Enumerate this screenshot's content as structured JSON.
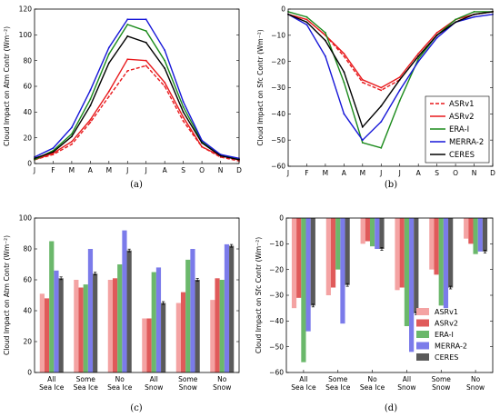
{
  "chart_data": [
    {
      "type": "line",
      "panel_label": "(a)",
      "ylabel": "Cloud Impact on Atm Contr (Wm⁻²)",
      "x": [
        "J",
        "F",
        "M",
        "A",
        "M",
        "J",
        "J",
        "A",
        "S",
        "O",
        "N",
        "D"
      ],
      "ylim": [
        0,
        120
      ],
      "yticks": [
        0,
        20,
        40,
        60,
        80,
        100,
        120
      ],
      "series": [
        {
          "name": "ASRv1",
          "color": "#e8191c",
          "dash": true,
          "values": [
            3,
            7,
            15,
            32,
            52,
            72,
            76,
            60,
            33,
            13,
            5,
            2
          ]
        },
        {
          "name": "ASRv2",
          "color": "#e8191c",
          "dash": false,
          "values": [
            3,
            8,
            17,
            34,
            56,
            81,
            80,
            63,
            36,
            13,
            6,
            3
          ]
        },
        {
          "name": "ERA-I",
          "color": "#1a8a1a",
          "dash": false,
          "values": [
            3,
            10,
            23,
            50,
            85,
            108,
            103,
            80,
            44,
            17,
            7,
            3
          ]
        },
        {
          "name": "MERRA-2",
          "color": "#1616d8",
          "dash": false,
          "values": [
            5,
            12,
            28,
            57,
            90,
            112,
            112,
            88,
            48,
            18,
            7,
            4
          ]
        },
        {
          "name": "CERES",
          "color": "#000000",
          "dash": false,
          "values": [
            4,
            9,
            21,
            45,
            78,
            99,
            94,
            74,
            40,
            16,
            6,
            3
          ]
        }
      ]
    },
    {
      "type": "line",
      "panel_label": "(b)",
      "ylabel": "Cloud Impact on Sfc Contr (Wm⁻²)",
      "x": [
        "J",
        "F",
        "M",
        "A",
        "M",
        "J",
        "J",
        "A",
        "S",
        "O",
        "N",
        "D"
      ],
      "ylim": [
        -60,
        0
      ],
      "yticks": [
        0,
        -10,
        -20,
        -30,
        -40,
        -50,
        -60
      ],
      "legend_position": "lower-right",
      "series": [
        {
          "name": "ASRv1",
          "color": "#e8191c",
          "dash": true,
          "values": [
            -2,
            -4,
            -10,
            -18,
            -28,
            -31,
            -27,
            -18,
            -10,
            -5,
            -2,
            -1
          ]
        },
        {
          "name": "ASRv2",
          "color": "#e8191c",
          "dash": false,
          "values": [
            -2,
            -4,
            -10,
            -17,
            -27,
            -30,
            -26,
            -17,
            -9,
            -4,
            -2,
            -1
          ]
        },
        {
          "name": "ERA-I",
          "color": "#1a8a1a",
          "dash": false,
          "values": [
            -1,
            -3,
            -9,
            -28,
            -51,
            -53,
            -35,
            -19,
            -10,
            -4,
            -1,
            -1
          ]
        },
        {
          "name": "MERRA-2",
          "color": "#1616d8",
          "dash": false,
          "values": [
            -2,
            -6,
            -18,
            -40,
            -50,
            -43,
            -31,
            -20,
            -11,
            -5,
            -3,
            -2
          ]
        },
        {
          "name": "CERES",
          "color": "#000000",
          "dash": false,
          "values": [
            -2,
            -5,
            -12,
            -24,
            -45,
            -37,
            -27,
            -18,
            -10,
            -5,
            -2,
            -1
          ]
        }
      ]
    },
    {
      "type": "bar",
      "panel_label": "(c)",
      "ylabel": "Cloud Impact on Atm Contr (Wm⁻²)",
      "categories": [
        [
          "All",
          "Sea Ice"
        ],
        [
          "Some",
          "Sea Ice"
        ],
        [
          "No",
          "Sea Ice"
        ],
        [
          "All",
          "Snow"
        ],
        [
          "Some",
          "Snow"
        ],
        [
          "No",
          "Snow"
        ]
      ],
      "ylim": [
        0,
        100
      ],
      "yticks": [
        0,
        20,
        40,
        60,
        80,
        100
      ],
      "series": [
        {
          "name": "ASRv1",
          "color": "#f4a3a3",
          "values": [
            51,
            60,
            60,
            35,
            45,
            47
          ]
        },
        {
          "name": "ASRv2",
          "color": "#e05a5a",
          "values": [
            48,
            55,
            61,
            35,
            52,
            61
          ]
        },
        {
          "name": "ERA-I",
          "color": "#6bb86b",
          "values": [
            85,
            57,
            70,
            65,
            73,
            60
          ]
        },
        {
          "name": "MERRA-2",
          "color": "#7b7bea",
          "values": [
            66,
            80,
            92,
            68,
            80,
            83
          ]
        },
        {
          "name": "CERES",
          "color": "#5a5a5a",
          "values": [
            61,
            64,
            79,
            45,
            60,
            82
          ]
        }
      ]
    },
    {
      "type": "bar",
      "panel_label": "(d)",
      "ylabel": "Cloud Impact on Sfc Contr (Wm⁻²)",
      "categories": [
        [
          "All",
          "Sea Ice"
        ],
        [
          "Some",
          "Sea Ice"
        ],
        [
          "No",
          "Sea Ice"
        ],
        [
          "All",
          "Snow"
        ],
        [
          "Some",
          "Snow"
        ],
        [
          "No",
          "Snow"
        ]
      ],
      "ylim": [
        -60,
        0
      ],
      "yticks": [
        0,
        -10,
        -20,
        -30,
        -40,
        -50,
        -60
      ],
      "legend_position": "lower-right",
      "series": [
        {
          "name": "ASRv1",
          "color": "#f4a3a3",
          "values": [
            -35,
            -30,
            -10,
            -28,
            -20,
            -8
          ]
        },
        {
          "name": "ASRv2",
          "color": "#e05a5a",
          "values": [
            -31,
            -27,
            -9,
            -27,
            -22,
            -10
          ]
        },
        {
          "name": "ERA-I",
          "color": "#6bb86b",
          "values": [
            -56,
            -20,
            -11,
            -42,
            -34,
            -14
          ]
        },
        {
          "name": "MERRA-2",
          "color": "#7b7bea",
          "values": [
            -44,
            -41,
            -12,
            -52,
            -35,
            -13
          ]
        },
        {
          "name": "CERES",
          "color": "#5a5a5a",
          "values": [
            -34,
            -26,
            -12,
            -37,
            -27,
            -13
          ]
        }
      ]
    }
  ]
}
